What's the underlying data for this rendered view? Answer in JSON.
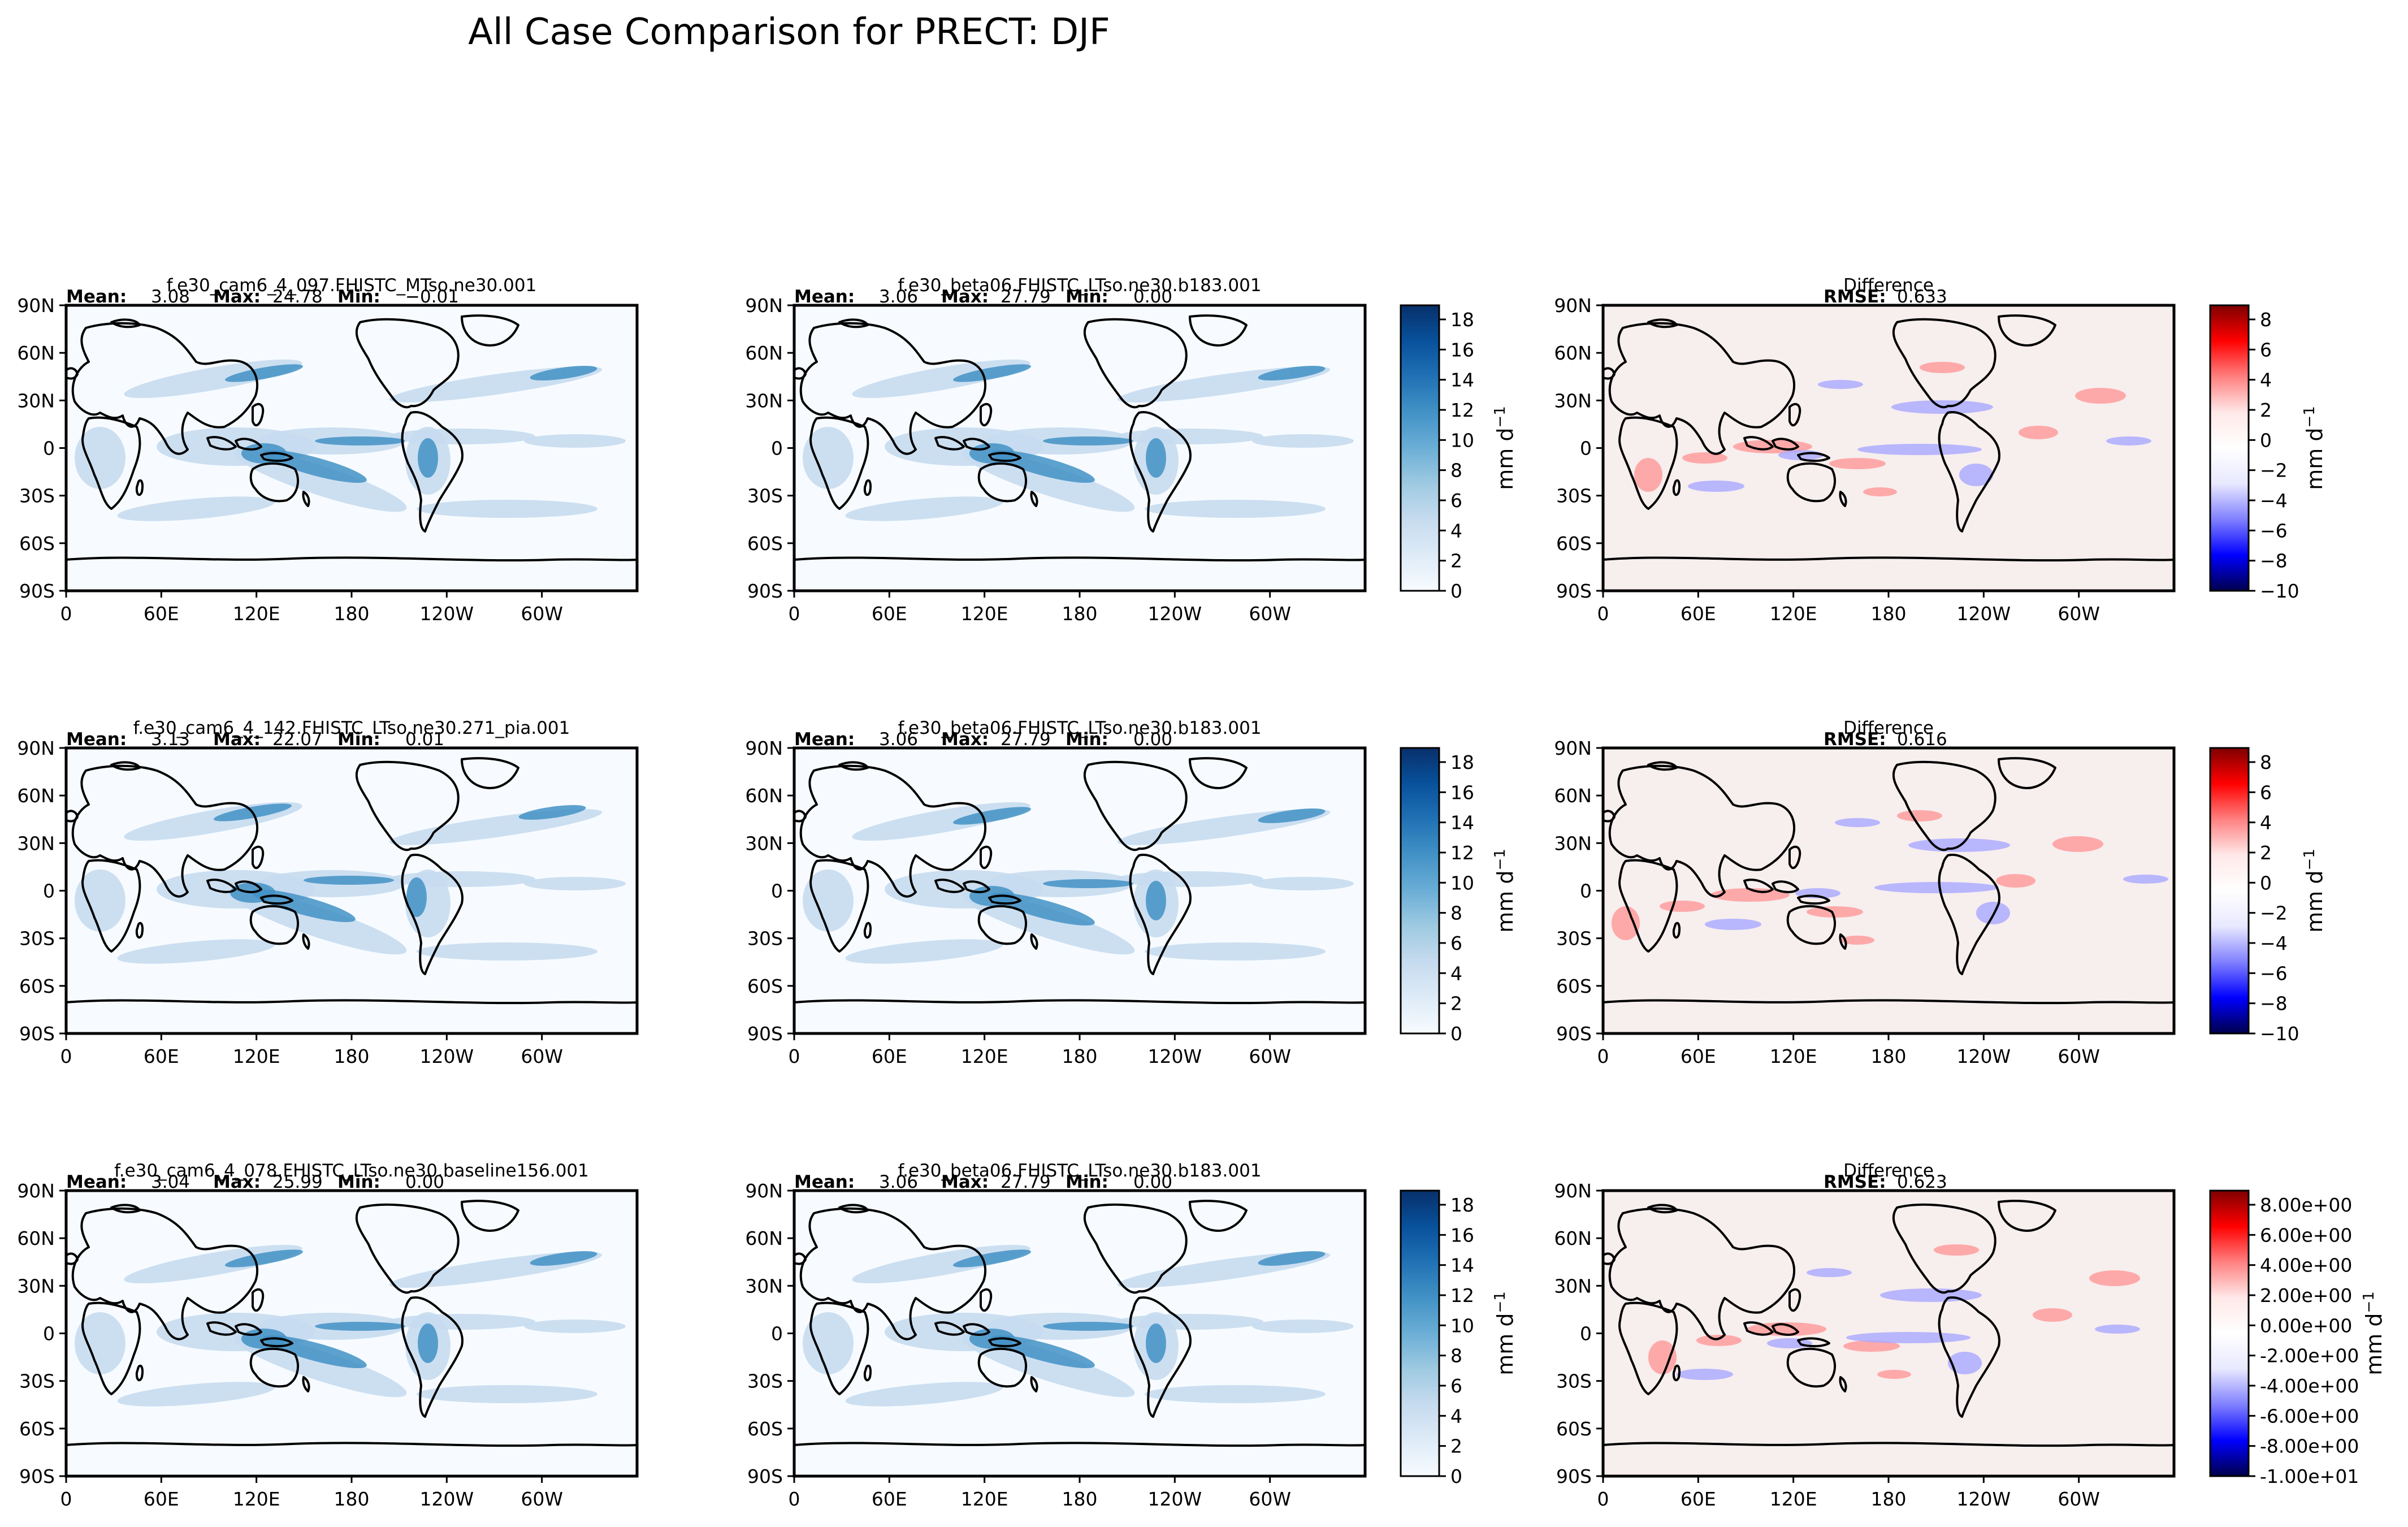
{
  "figure": {
    "title": "All Case Comparison for PRECT: DJF"
  },
  "axes": {
    "lon_ticks": [
      "0",
      "60E",
      "120E",
      "180",
      "120W",
      "60W"
    ],
    "lat_ticks": [
      "90N",
      "60N",
      "30N",
      "0",
      "30S",
      "60S",
      "90S"
    ]
  },
  "colors": {
    "blues": [
      "#f7fbff",
      "#deebf7",
      "#c6dbef",
      "#9ecae1",
      "#6baed6",
      "#4292c6",
      "#2171b5",
      "#08519c",
      "#08306b"
    ],
    "diverging": [
      "#00004c",
      "#0000ff",
      "#8080ff",
      "#e8e8ff",
      "#ffffff",
      "#ffe8e8",
      "#ff8080",
      "#ff0000",
      "#800000"
    ],
    "coastline": "#000000"
  },
  "colorbars": {
    "precip": {
      "unit": "mm d",
      "unit_sup": "−1",
      "ticks": [
        "0",
        "2",
        "4",
        "6",
        "8",
        "10",
        "12",
        "14",
        "16",
        "18"
      ]
    },
    "diff": {
      "unit": "mm d",
      "unit_sup": "−1",
      "ticks": [
        "−10",
        "−8",
        "−6",
        "−4",
        "−2",
        "0",
        "2",
        "4",
        "6",
        "8"
      ]
    },
    "diff_sci": {
      "unit": "mm d",
      "unit_sup": "−1",
      "ticks": [
        "-1.00e+01",
        "-8.00e+00",
        "-6.00e+00",
        "-4.00e+00",
        "-2.00e+00",
        "0.00e+00",
        "2.00e+00",
        "4.00e+00",
        "6.00e+00",
        "8.00e+00"
      ]
    }
  },
  "rows": [
    {
      "test": {
        "case": "f.e30_cam6_4_097.FHISTC_MTso.ne30.001",
        "mean_label": "Mean:",
        "mean": "3.08",
        "max_label": "Max:",
        "max": "24.78",
        "min_label": "Min:",
        "min": "−0.01"
      },
      "ref": {
        "case": "f.e30_beta06.FHISTC_LTso.ne30.b183.001",
        "mean_label": "Mean:",
        "mean": "3.06",
        "max_label": "Max:",
        "max": "27.79",
        "min_label": "Min:",
        "min": "0.00"
      },
      "diff": {
        "title": "Difference",
        "rmse_label": "RMSE:",
        "rmse": "0.633"
      }
    },
    {
      "test": {
        "case": "f.e30_cam6_4_142.FHISTC_LTso.ne30.271_pia.001",
        "mean_label": "Mean:",
        "mean": "3.13",
        "max_label": "Max:",
        "max": "22.07",
        "min_label": "Min:",
        "min": "0.01"
      },
      "ref": {
        "case": "f.e30_beta06.FHISTC_LTso.ne30.b183.001",
        "mean_label": "Mean:",
        "mean": "3.06",
        "max_label": "Max:",
        "max": "27.79",
        "min_label": "Min:",
        "min": "0.00"
      },
      "diff": {
        "title": "Difference",
        "rmse_label": "RMSE:",
        "rmse": "0.616"
      }
    },
    {
      "test": {
        "case": "f.e30_cam6_4_078.FHISTC_LTso.ne30.baseline156.001",
        "mean_label": "Mean:",
        "mean": "3.04",
        "max_label": "Max:",
        "max": "25.99",
        "min_label": "Min:",
        "min": "0.00"
      },
      "ref": {
        "case": "f.e30_beta06.FHISTC_LTso.ne30.b183.001",
        "mean_label": "Mean:",
        "mean": "3.06",
        "max_label": "Max:",
        "max": "27.79",
        "min_label": "Min:",
        "min": "0.00"
      },
      "diff": {
        "title": "Difference",
        "rmse_label": "RMSE:",
        "rmse": "0.623"
      }
    }
  ]
}
